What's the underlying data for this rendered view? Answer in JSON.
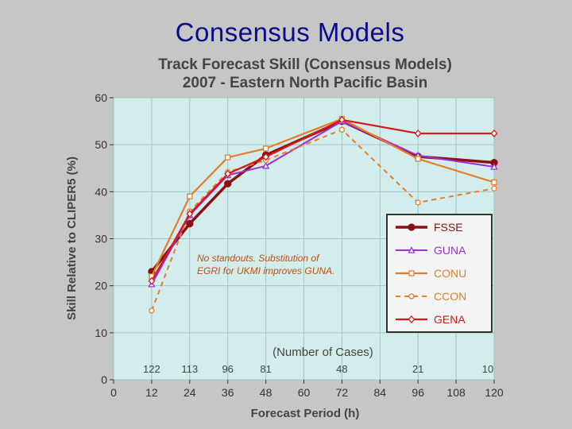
{
  "slide": {
    "title": "Consensus Models"
  },
  "chart_data": {
    "type": "line",
    "title": "Track Forecast Skill (Consensus Models)",
    "subtitle": "2007 - Eastern North Pacific Basin",
    "xlabel": "Forecast Period (h)",
    "ylabel": "Skill Relative to CLIPER5 (%)",
    "xlim": [
      0,
      120
    ],
    "ylim": [
      0,
      60
    ],
    "xticks": [
      0,
      12,
      24,
      36,
      48,
      60,
      72,
      84,
      96,
      108,
      120
    ],
    "yticks": [
      0,
      10,
      20,
      30,
      40,
      50,
      60
    ],
    "grid": true,
    "legend_position": "bottom-right",
    "cases_label": "(Number of Cases)",
    "cases": [
      {
        "x": 12,
        "n": "122"
      },
      {
        "x": 24,
        "n": "113"
      },
      {
        "x": 36,
        "n": "96"
      },
      {
        "x": 48,
        "n": "81"
      },
      {
        "x": 72,
        "n": "48"
      },
      {
        "x": 96,
        "n": "21"
      },
      {
        "x": 120,
        "n": "10"
      }
    ],
    "annotation": "No standouts.  Substitution of EGRI for UKMI improves GUNA.",
    "series": [
      {
        "name": "FSSE",
        "color": "#8b1010",
        "dash": "",
        "width": 3.5,
        "marker": "filled-circle",
        "x": [
          12,
          24,
          36,
          48,
          72,
          96,
          120
        ],
        "values": [
          23,
          33.2,
          41.7,
          47.8,
          55,
          47.5,
          46.2
        ]
      },
      {
        "name": "GUNA",
        "color": "#9b30d8",
        "dash": "",
        "width": 2,
        "marker": "triangle",
        "x": [
          12,
          24,
          36,
          48,
          72,
          96,
          120
        ],
        "values": [
          20.3,
          35,
          43.5,
          45.5,
          55,
          47.7,
          45.3
        ]
      },
      {
        "name": "CONU",
        "color": "#e87c28",
        "dash": "",
        "width": 2.2,
        "marker": "square",
        "x": [
          12,
          24,
          36,
          48,
          72,
          96,
          120
        ],
        "values": [
          22,
          39,
          47.3,
          49.2,
          55.5,
          47,
          42
        ]
      },
      {
        "name": "CCON",
        "color": "#e87c28",
        "dash": "6,5",
        "width": 2,
        "marker": "open-circle",
        "x": [
          12,
          24,
          36,
          48,
          72,
          96,
          120
        ],
        "values": [
          14.7,
          35.8,
          44.2,
          46.7,
          53.2,
          37.7,
          40.7
        ]
      },
      {
        "name": "GENA",
        "color": "#d41a1a",
        "dash": "",
        "width": 2.2,
        "marker": "open-diamond",
        "x": [
          12,
          24,
          36,
          48,
          72,
          96,
          120
        ],
        "values": [
          21,
          35.3,
          43.8,
          47.4,
          55.3,
          52.4,
          52.4
        ]
      }
    ]
  }
}
